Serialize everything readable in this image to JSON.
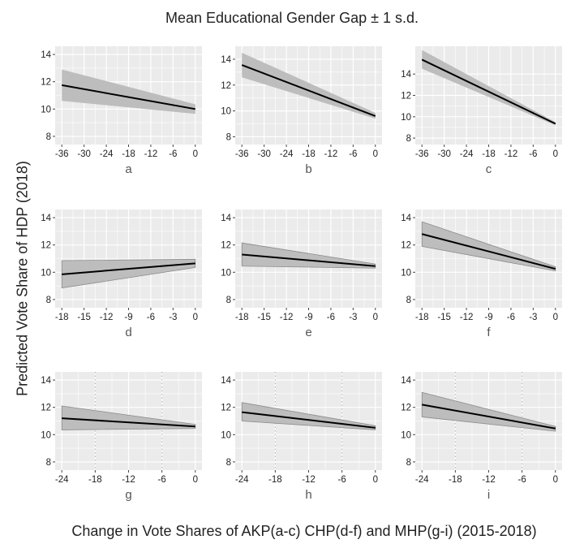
{
  "title": "Mean Educational Gender Gap ± 1 s.d.",
  "ylabel": "Predicted Vote Share of HDP (2018)",
  "xlabel": "Change in Vote Shares of AKP(a-c) CHP(d-f) and MHP(g-i) (2015-2018)",
  "colors": {
    "panel_bg": "#ebebeb",
    "grid": "#ffffff",
    "band": "#bdbdbd",
    "band_edge": "#8c8c8c",
    "line": "#000000",
    "vline": "#b0b0b0"
  },
  "chart_data": [
    {
      "type": "line",
      "label": "a",
      "xlim": [
        -37.8,
        1.8
      ],
      "ylim": [
        7.4,
        14.6
      ],
      "xticks": [
        -36,
        -30,
        -24,
        -18,
        -12,
        -6,
        0
      ],
      "yticks": [
        8,
        10,
        12,
        14
      ],
      "show_band_edges": false,
      "series": [
        {
          "x": [
            -36,
            0
          ],
          "y": [
            11.75,
            10.0
          ],
          "lower": [
            10.6,
            9.65
          ],
          "upper": [
            12.9,
            10.35
          ]
        }
      ]
    },
    {
      "type": "line",
      "label": "b",
      "xlim": [
        -37.8,
        1.8
      ],
      "ylim": [
        7.4,
        15.0
      ],
      "xticks": [
        -36,
        -30,
        -24,
        -18,
        -12,
        -6,
        0
      ],
      "yticks": [
        8,
        10,
        12,
        14
      ],
      "show_band_edges": false,
      "series": [
        {
          "x": [
            -36,
            0
          ],
          "y": [
            13.55,
            9.6
          ],
          "lower": [
            12.6,
            9.4
          ],
          "upper": [
            14.5,
            9.85
          ]
        }
      ]
    },
    {
      "type": "line",
      "label": "c",
      "xlim": [
        -37.8,
        1.8
      ],
      "ylim": [
        7.4,
        16.6
      ],
      "xticks": [
        -36,
        -30,
        -24,
        -18,
        -12,
        -6,
        0
      ],
      "yticks": [
        8,
        10,
        12,
        14
      ],
      "show_band_edges": false,
      "series": [
        {
          "x": [
            -36,
            0
          ],
          "y": [
            15.35,
            9.35
          ],
          "lower": [
            14.5,
            9.2
          ],
          "upper": [
            16.25,
            9.5
          ]
        }
      ]
    },
    {
      "type": "line",
      "label": "d",
      "xlim": [
        -18.9,
        0.9
      ],
      "ylim": [
        7.4,
        14.6
      ],
      "xticks": [
        -18,
        -15,
        -12,
        -9,
        -6,
        -3,
        0
      ],
      "yticks": [
        8,
        10,
        12,
        14
      ],
      "show_band_edges": true,
      "series": [
        {
          "x": [
            -18,
            0
          ],
          "y": [
            9.85,
            10.65
          ],
          "lower": [
            8.85,
            10.35
          ],
          "upper": [
            10.85,
            10.95
          ]
        }
      ]
    },
    {
      "type": "line",
      "label": "e",
      "xlim": [
        -18.9,
        0.9
      ],
      "ylim": [
        7.4,
        14.6
      ],
      "xticks": [
        -18,
        -15,
        -12,
        -9,
        -6,
        -3,
        0
      ],
      "yticks": [
        8,
        10,
        12,
        14
      ],
      "show_band_edges": true,
      "series": [
        {
          "x": [
            -18,
            0
          ],
          "y": [
            11.3,
            10.45
          ],
          "lower": [
            10.45,
            10.3
          ],
          "upper": [
            12.15,
            10.6
          ]
        }
      ]
    },
    {
      "type": "line",
      "label": "f",
      "xlim": [
        -18.9,
        0.9
      ],
      "ylim": [
        7.4,
        14.6
      ],
      "xticks": [
        -18,
        -15,
        -12,
        -9,
        -6,
        -3,
        0
      ],
      "yticks": [
        8,
        10,
        12,
        14
      ],
      "show_band_edges": true,
      "series": [
        {
          "x": [
            -18,
            0
          ],
          "y": [
            12.8,
            10.25
          ],
          "lower": [
            11.9,
            10.1
          ],
          "upper": [
            13.7,
            10.4
          ]
        }
      ]
    },
    {
      "type": "line",
      "label": "g",
      "xlim": [
        -25.2,
        1.2
      ],
      "ylim": [
        7.4,
        14.6
      ],
      "xticks": [
        -24,
        -18,
        -12,
        -6,
        0
      ],
      "yticks": [
        8,
        10,
        12,
        14
      ],
      "show_band_edges": true,
      "vlines": [
        -18,
        -6
      ],
      "series": [
        {
          "x": [
            -24,
            0
          ],
          "y": [
            11.2,
            10.6
          ],
          "lower": [
            10.35,
            10.45
          ],
          "upper": [
            12.1,
            10.75
          ]
        }
      ]
    },
    {
      "type": "line",
      "label": "h",
      "xlim": [
        -25.2,
        1.2
      ],
      "ylim": [
        7.4,
        14.6
      ],
      "xticks": [
        -24,
        -18,
        -12,
        -6,
        0
      ],
      "yticks": [
        8,
        10,
        12,
        14
      ],
      "show_band_edges": true,
      "vlines": [
        -18,
        -6
      ],
      "series": [
        {
          "x": [
            -24,
            0
          ],
          "y": [
            11.65,
            10.5
          ],
          "lower": [
            11.0,
            10.35
          ],
          "upper": [
            12.35,
            10.65
          ]
        }
      ]
    },
    {
      "type": "line",
      "label": "i",
      "xlim": [
        -25.2,
        1.2
      ],
      "ylim": [
        7.4,
        14.6
      ],
      "xticks": [
        -24,
        -18,
        -12,
        -6,
        0
      ],
      "yticks": [
        8,
        10,
        12,
        14
      ],
      "show_band_edges": true,
      "vlines": [
        -18,
        -6
      ],
      "series": [
        {
          "x": [
            -24,
            0
          ],
          "y": [
            12.2,
            10.45
          ],
          "lower": [
            11.3,
            10.25
          ],
          "upper": [
            13.1,
            10.6
          ]
        }
      ]
    }
  ]
}
